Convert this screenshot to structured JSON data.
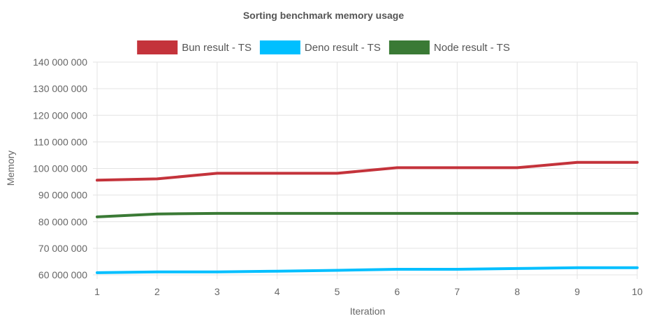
{
  "chart_data": {
    "type": "line",
    "title": "Sorting benchmark memory usage",
    "xlabel": "Iteration",
    "ylabel": "Memory",
    "x": [
      1,
      2,
      3,
      4,
      5,
      6,
      7,
      8,
      9,
      10
    ],
    "ylim": [
      60000000,
      140000000
    ],
    "y_ticks": [
      60000000,
      70000000,
      80000000,
      90000000,
      100000000,
      110000000,
      120000000,
      130000000,
      140000000
    ],
    "y_tick_labels": [
      "60 000 000",
      "70 000 000",
      "80 000 000",
      "90 000 000",
      "100 000 000",
      "110 000 000",
      "120 000 000",
      "130 000 000",
      "140 000 000"
    ],
    "grid": true,
    "legend_position": "top",
    "series": [
      {
        "name": "Bun result - TS",
        "color": "#c4333b",
        "values": [
          95600000,
          96100000,
          98200000,
          98200000,
          98200000,
          100300000,
          100300000,
          100300000,
          102300000,
          102300000
        ]
      },
      {
        "name": "Deno result - TS",
        "color": "#00bfff",
        "values": [
          60800000,
          61100000,
          61100000,
          61400000,
          61700000,
          62100000,
          62100000,
          62400000,
          62700000,
          62700000
        ]
      },
      {
        "name": "Node result - TS",
        "color": "#3a7a35",
        "values": [
          81800000,
          82900000,
          83100000,
          83100000,
          83100000,
          83100000,
          83100000,
          83100000,
          83100000,
          83100000
        ]
      }
    ]
  }
}
